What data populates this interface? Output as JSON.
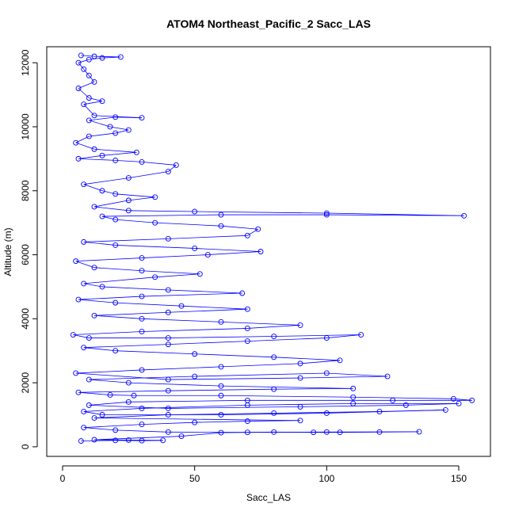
{
  "chart_data": {
    "type": "scatter",
    "title": "ATOM4 Northeast_Pacific_2 Sacc_LAS",
    "xlabel": "Sacc_LAS",
    "ylabel": "Altitude (m)",
    "xlim": [
      -6,
      162
    ],
    "ylim": [
      -300,
      12500
    ],
    "x_ticks": [
      0,
      50,
      100,
      150
    ],
    "y_ticks": [
      0,
      2000,
      4000,
      6000,
      8000,
      10000,
      12000
    ],
    "grid": false,
    "legend": "none",
    "series": [
      {
        "color": "#0000ff",
        "marker": "open-circle",
        "connected": true,
        "points": [
          [
            7,
            180
          ],
          [
            20,
            200
          ],
          [
            30,
            190
          ],
          [
            38,
            200
          ],
          [
            25,
            210
          ],
          [
            12,
            220
          ],
          [
            45,
            330
          ],
          [
            60,
            440
          ],
          [
            80,
            460
          ],
          [
            95,
            450
          ],
          [
            105,
            450
          ],
          [
            120,
            460
          ],
          [
            135,
            470
          ],
          [
            100,
            460
          ],
          [
            70,
            450
          ],
          [
            40,
            460
          ],
          [
            20,
            520
          ],
          [
            8,
            600
          ],
          [
            30,
            700
          ],
          [
            50,
            760
          ],
          [
            70,
            800
          ],
          [
            90,
            820
          ],
          [
            12,
            900
          ],
          [
            40,
            1000
          ],
          [
            80,
            1050
          ],
          [
            120,
            1100
          ],
          [
            145,
            1150
          ],
          [
            100,
            1050
          ],
          [
            60,
            1000
          ],
          [
            15,
            1000
          ],
          [
            8,
            1100
          ],
          [
            30,
            1200
          ],
          [
            70,
            1300
          ],
          [
            110,
            1350
          ],
          [
            150,
            1350
          ],
          [
            130,
            1300
          ],
          [
            90,
            1250
          ],
          [
            40,
            1200
          ],
          [
            10,
            1300
          ],
          [
            25,
            1400
          ],
          [
            70,
            1450
          ],
          [
            125,
            1450
          ],
          [
            155,
            1450
          ],
          [
            148,
            1500
          ],
          [
            110,
            1550
          ],
          [
            60,
            1600
          ],
          [
            27,
            1600
          ],
          [
            18,
            1620
          ],
          [
            6,
            1700
          ],
          [
            40,
            1750
          ],
          [
            80,
            1800
          ],
          [
            110,
            1820
          ],
          [
            60,
            1900
          ],
          [
            25,
            2000
          ],
          [
            10,
            2100
          ],
          [
            50,
            2200
          ],
          [
            100,
            2300
          ],
          [
            123,
            2200
          ],
          [
            90,
            2150
          ],
          [
            40,
            2100
          ],
          [
            5,
            2300
          ],
          [
            30,
            2400
          ],
          [
            60,
            2500
          ],
          [
            90,
            2600
          ],
          [
            105,
            2700
          ],
          [
            80,
            2800
          ],
          [
            50,
            2900
          ],
          [
            20,
            3000
          ],
          [
            8,
            3100
          ],
          [
            40,
            3200
          ],
          [
            70,
            3300
          ],
          [
            100,
            3400
          ],
          [
            113,
            3500
          ],
          [
            80,
            3450
          ],
          [
            40,
            3400
          ],
          [
            10,
            3400
          ],
          [
            4,
            3500
          ],
          [
            30,
            3600
          ],
          [
            70,
            3700
          ],
          [
            90,
            3800
          ],
          [
            60,
            3900
          ],
          [
            30,
            4000
          ],
          [
            12,
            4100
          ],
          [
            40,
            4200
          ],
          [
            70,
            4300
          ],
          [
            45,
            4400
          ],
          [
            20,
            4500
          ],
          [
            6,
            4600
          ],
          [
            30,
            4700
          ],
          [
            68,
            4800
          ],
          [
            40,
            4900
          ],
          [
            15,
            5000
          ],
          [
            8,
            5100
          ],
          [
            35,
            5300
          ],
          [
            52,
            5400
          ],
          [
            30,
            5500
          ],
          [
            12,
            5600
          ],
          [
            5,
            5800
          ],
          [
            30,
            5900
          ],
          [
            55,
            6000
          ],
          [
            75,
            6100
          ],
          [
            50,
            6200
          ],
          [
            20,
            6300
          ],
          [
            8,
            6400
          ],
          [
            40,
            6500
          ],
          [
            70,
            6600
          ],
          [
            74,
            6800
          ],
          [
            60,
            6900
          ],
          [
            35,
            7000
          ],
          [
            20,
            7100
          ],
          [
            15,
            7200
          ],
          [
            60,
            7250
          ],
          [
            100,
            7250
          ],
          [
            152,
            7220
          ],
          [
            100,
            7300
          ],
          [
            50,
            7350
          ],
          [
            25,
            7380
          ],
          [
            12,
            7500
          ],
          [
            25,
            7700
          ],
          [
            35,
            7800
          ],
          [
            20,
            7900
          ],
          [
            15,
            8000
          ],
          [
            8,
            8200
          ],
          [
            25,
            8400
          ],
          [
            40,
            8600
          ],
          [
            43,
            8800
          ],
          [
            30,
            8900
          ],
          [
            20,
            8950
          ],
          [
            6,
            9000
          ],
          [
            15,
            9100
          ],
          [
            28,
            9200
          ],
          [
            12,
            9300
          ],
          [
            5,
            9500
          ],
          [
            10,
            9700
          ],
          [
            20,
            9800
          ],
          [
            25,
            9900
          ],
          [
            18,
            10000
          ],
          [
            10,
            10200
          ],
          [
            20,
            10300
          ],
          [
            30,
            10280
          ],
          [
            12,
            10350
          ],
          [
            8,
            10700
          ],
          [
            15,
            10800
          ],
          [
            10,
            10900
          ],
          [
            6,
            11200
          ],
          [
            12,
            11400
          ],
          [
            10,
            11600
          ],
          [
            8,
            11800
          ],
          [
            6,
            12000
          ],
          [
            10,
            12100
          ],
          [
            15,
            12150
          ],
          [
            22,
            12180
          ],
          [
            12,
            12200
          ],
          [
            7,
            12230
          ]
        ]
      }
    ]
  }
}
